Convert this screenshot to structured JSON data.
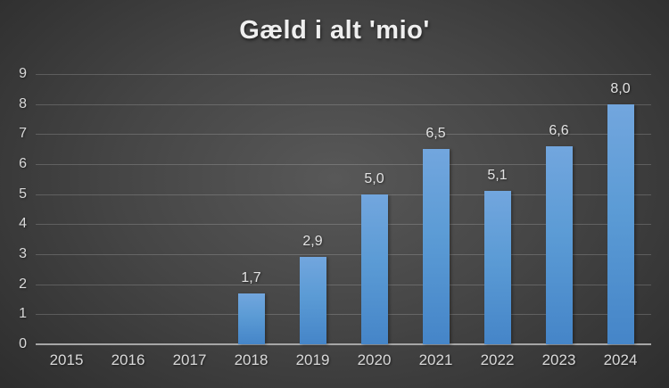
{
  "chart_data": {
    "type": "bar",
    "title": "Gæld i alt 'mio'",
    "categories": [
      "2015",
      "2016",
      "2017",
      "2018",
      "2019",
      "2020",
      "2021",
      "2022",
      "2023",
      "2024"
    ],
    "values": [
      null,
      null,
      null,
      1.7,
      2.9,
      5.0,
      6.5,
      5.1,
      6.6,
      8.0
    ],
    "value_labels": [
      "",
      "",
      "",
      "1,7",
      "2,9",
      "5,0",
      "6,5",
      "5,1",
      "6,6",
      "8,0"
    ],
    "xlabel": "",
    "ylabel": "",
    "ylim": [
      0,
      9
    ],
    "ytick_step": 1,
    "ytick_labels": [
      "0",
      "1",
      "2",
      "3",
      "4",
      "5",
      "6",
      "7",
      "8",
      "9"
    ],
    "grid": true,
    "legend": false,
    "colors": {
      "bar_top": "#72a6de",
      "bar_mid": "#5b9bd5",
      "bar_bottom": "#4585c8",
      "background_center": "#585858",
      "background_edge": "#242424",
      "gridline": "rgba(255,255,255,0.18)",
      "axis_line": "#a6a6a6",
      "title_text": "#efefef",
      "label_text": "#d9d9d9"
    }
  }
}
